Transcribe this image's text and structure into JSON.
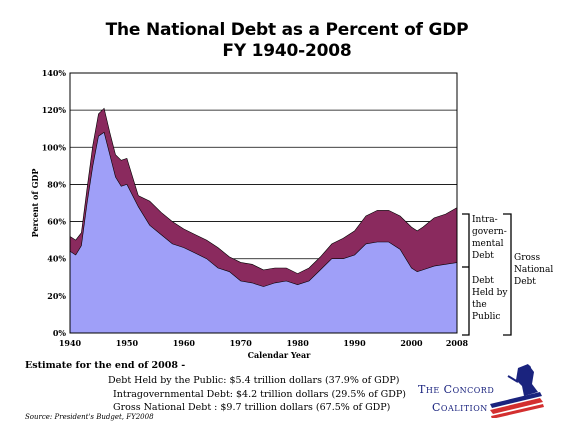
{
  "title_line1": "The National Debt as a Percent of GDP",
  "title_line2": "FY 1940-2008",
  "chart_data": {
    "type": "area",
    "title": "The National Debt as a Percent of GDP FY 1940-2008",
    "xlabel": "Calendar Year",
    "ylabel": "Percent of GDP",
    "xlim": [
      1940,
      2008
    ],
    "ylim": [
      0,
      140
    ],
    "yticks": [
      "0%",
      "20%",
      "40%",
      "60%",
      "80%",
      "100%",
      "120%",
      "140%"
    ],
    "xticks": [
      "1940",
      "1950",
      "1960",
      "1970",
      "1980",
      "1990",
      "2000",
      "2008"
    ],
    "grid": "horizontal",
    "x": [
      1940,
      1941,
      1942,
      1943,
      1944,
      1945,
      1946,
      1947,
      1948,
      1949,
      1950,
      1952,
      1954,
      1956,
      1958,
      1960,
      1962,
      1964,
      1966,
      1968,
      1970,
      1972,
      1974,
      1976,
      1978,
      1980,
      1982,
      1984,
      1986,
      1988,
      1990,
      1992,
      1994,
      1996,
      1998,
      2000,
      2001,
      2002,
      2004,
      2006,
      2008
    ],
    "series": [
      {
        "name": "Debt Held by the Public",
        "color": "#9f9ff8",
        "values": [
          44,
          42,
          47,
          70,
          90,
          106,
          108,
          96,
          84,
          79,
          80,
          68,
          58,
          53,
          48,
          46,
          43,
          40,
          35,
          33,
          28,
          27,
          25,
          27,
          28,
          26,
          28,
          34,
          40,
          40,
          42,
          48,
          49,
          49,
          45,
          35,
          33,
          34,
          36,
          37,
          37.9
        ]
      },
      {
        "name": "Gross National Debt",
        "color": "#8a2a5e",
        "values": [
          52,
          50,
          54,
          78,
          101,
          118,
          121,
          108,
          96,
          93,
          94,
          74,
          71,
          65,
          60,
          56,
          53,
          50,
          46,
          41,
          38,
          37,
          34,
          35,
          35,
          32,
          35,
          41,
          48,
          51,
          55,
          63,
          66,
          66,
          63,
          57,
          55,
          57,
          62,
          64,
          67.5
        ]
      }
    ],
    "annotations": {
      "intragov": [
        "Intra-",
        "govern-",
        "mental",
        "Debt"
      ],
      "public": [
        "Debt",
        "Held by",
        "the",
        "Public"
      ],
      "gross": [
        "Gross",
        "National",
        "Debt"
      ]
    }
  },
  "estimate": {
    "heading": "Estimate for the end of 2008 -",
    "line1": "Debt Held by the Public: $5.4 trillion dollars (37.9% of GDP)",
    "line2": "Intragovernmental Debt: $4.2 trillion dollars (29.5% of GDP)",
    "line3": "Gross National Debt : $9.7 trillion dollars (67.5% of GDP)"
  },
  "source": "Source: President's Budget, FY2008",
  "logo": {
    "line1": "The Concord",
    "line2": "Coalition",
    "icon": "minuteman-flag-icon",
    "colors": {
      "navy": "#1a237e",
      "red": "#d32f2f"
    }
  }
}
